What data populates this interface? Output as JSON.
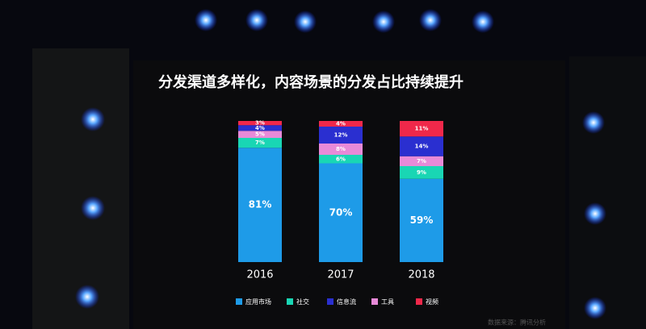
{
  "chart_data": {
    "type": "stacked_bar",
    "title": "分发渠道多样化，内容场景的分发占比持续提升",
    "categories": [
      "2016",
      "2017",
      "2018"
    ],
    "series": [
      {
        "name": "应用市场",
        "color": "#1e9be8",
        "values": [
          81,
          70,
          59
        ],
        "value_labels": [
          "81%",
          "70%",
          "59%"
        ]
      },
      {
        "name": "社交",
        "color": "#19d6b4",
        "values": [
          7,
          6,
          9
        ],
        "value_labels": [
          "7%",
          "6%",
          "9%"
        ]
      },
      {
        "name": "信息流",
        "color": "#2a2fd0",
        "values": [
          4,
          12,
          14
        ],
        "value_labels": [
          "4%",
          "12%",
          "14%"
        ]
      },
      {
        "name": "工具",
        "color": "#e88ad8",
        "values": [
          5,
          8,
          7
        ],
        "value_labels": [
          "5%",
          "8%",
          "7%"
        ]
      },
      {
        "name": "视频",
        "color": "#f0284a",
        "values": [
          3,
          4,
          11
        ],
        "value_labels": [
          "3%",
          "4%",
          "11%"
        ]
      }
    ],
    "source": "数据来源：腾讯分析"
  }
}
